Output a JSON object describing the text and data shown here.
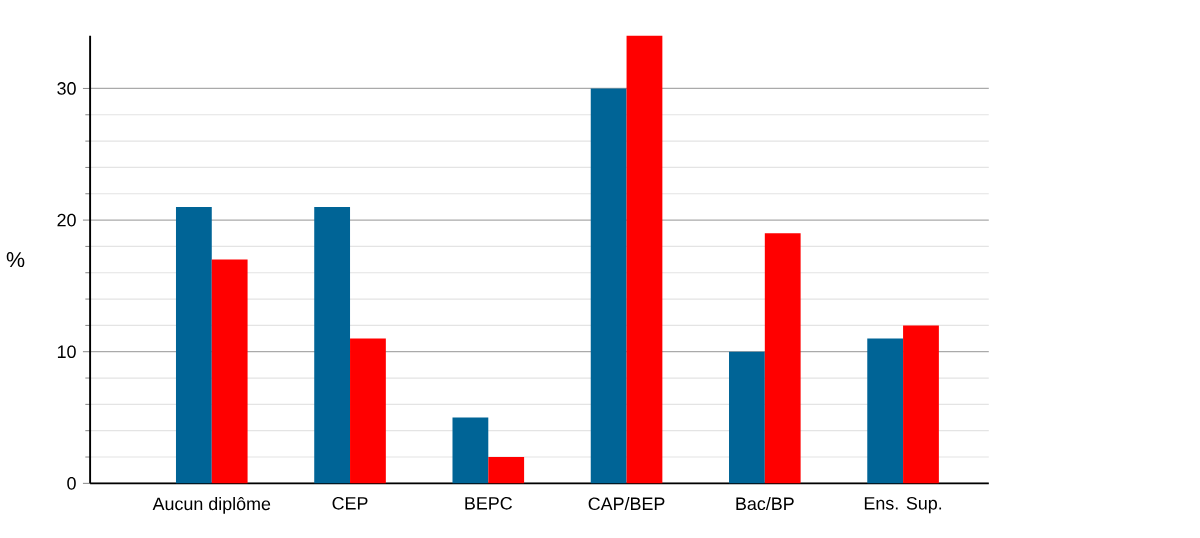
{
  "chart_data": {
    "type": "bar",
    "ylabel": "%",
    "categories": [
      "Aucun diplôme",
      "CEP",
      "BEPC",
      "CAP/BEP",
      "Bac/BP",
      "Ens. Sup."
    ],
    "series": [
      {
        "color": "#006496",
        "values": [
          21,
          21,
          5,
          30,
          10,
          11
        ]
      },
      {
        "color": "#ff0000",
        "values": [
          17,
          11,
          2,
          34,
          19,
          12
        ]
      }
    ],
    "ylim": [
      0,
      34
    ],
    "yticks": [
      0,
      10,
      20,
      30
    ],
    "grid": "y"
  }
}
